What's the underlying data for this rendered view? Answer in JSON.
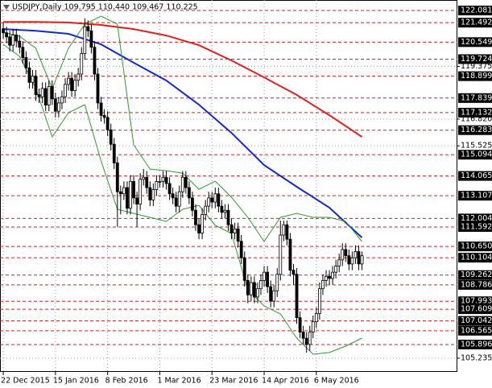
{
  "chart_data": {
    "type": "candlestick",
    "title": "USDJPY,Daily  109.795 110.440 109.467 110.225",
    "categories": [
      "22 Dec 2015",
      null,
      null,
      null,
      null,
      null,
      null,
      null,
      null,
      null,
      null,
      null,
      null,
      null,
      null,
      null,
      "15 Jan 2016",
      null,
      null,
      null,
      null,
      null,
      null,
      null,
      null,
      null,
      null,
      null,
      null,
      null,
      null,
      null,
      "8 Feb 2016",
      null,
      null,
      null,
      null,
      null,
      null,
      null,
      null,
      null,
      null,
      null,
      null,
      null,
      null,
      null,
      "1 Mar 2016",
      null,
      null,
      null,
      null,
      null,
      null,
      null,
      null,
      null,
      null,
      null,
      null,
      null,
      null,
      null,
      "23 Mar 2016",
      null,
      null,
      null,
      null,
      null,
      null,
      null,
      null,
      null,
      null,
      null,
      null,
      null,
      null,
      null,
      "14 Apr 2016",
      null,
      null,
      null,
      null,
      null,
      null,
      null,
      null,
      null,
      null,
      null,
      null,
      null,
      null,
      null,
      "6 May 2016",
      null,
      null,
      null,
      null,
      null,
      null,
      null,
      null,
      null,
      null,
      null,
      null,
      null,
      null
    ],
    "open": [
      121.2,
      121.0,
      120.8,
      120.4,
      120.9,
      120.6,
      120.3,
      119.8,
      119.3,
      118.6,
      118.9,
      118.0,
      117.9,
      118.3,
      117.5,
      118.4,
      117.8,
      117.2,
      117.6,
      117.9,
      118.5,
      118.8,
      118.2,
      118.7,
      119.0,
      120.0,
      121.3,
      121.1,
      120.3,
      119.0,
      117.6,
      117.0,
      116.9,
      116.3,
      115.6,
      114.7,
      113.3,
      113.2,
      113.5,
      112.5,
      113.8,
      113.0,
      112.7,
      113.9,
      114.0,
      113.5,
      112.9,
      113.4,
      113.8,
      113.8,
      114.0,
      113.7,
      113.2,
      113.0,
      112.6,
      113.3,
      114.0,
      113.5,
      113.0,
      112.4,
      111.7,
      111.3,
      112.2,
      112.6,
      113.0,
      112.8,
      113.2,
      112.6,
      112.3,
      112.4,
      111.7,
      111.3,
      111.5,
      110.9,
      110.1,
      109.0,
      108.3,
      108.9,
      108.2,
      108.6,
      109.0,
      109.4,
      108.7,
      108.0,
      108.5,
      109.3,
      111.2,
      111.7,
      111.0,
      109.5,
      109.3,
      107.2,
      106.5,
      106.2,
      105.9,
      106.5,
      107.0,
      107.4,
      108.6,
      109.0,
      109.2,
      109.1,
      109.4,
      109.7,
      110.0,
      110.5,
      110.2,
      109.8,
      110.1,
      110.4,
      109.8
    ],
    "high": [
      121.5,
      121.3,
      121.1,
      121.2,
      121.2,
      120.9,
      120.6,
      120.1,
      119.6,
      119.2,
      119.2,
      118.3,
      118.6,
      118.6,
      118.7,
      118.7,
      118.1,
      117.9,
      118.2,
      118.8,
      119.1,
      119.1,
      119.0,
      119.3,
      120.3,
      121.7,
      121.6,
      121.4,
      120.6,
      119.3,
      117.9,
      117.3,
      117.2,
      116.6,
      115.9,
      115.0,
      113.6,
      113.8,
      113.8,
      114.1,
      114.1,
      113.3,
      114.2,
      114.4,
      114.3,
      113.8,
      113.7,
      114.1,
      114.1,
      114.3,
      114.3,
      114.0,
      113.5,
      113.3,
      113.6,
      114.3,
      114.3,
      113.8,
      113.3,
      112.7,
      112.0,
      112.5,
      112.9,
      113.3,
      113.3,
      113.5,
      113.5,
      112.9,
      112.7,
      112.7,
      112.0,
      111.8,
      111.8,
      111.2,
      110.4,
      109.3,
      109.2,
      109.2,
      108.9,
      109.3,
      109.7,
      109.7,
      109.0,
      108.8,
      109.6,
      111.9,
      111.9,
      111.9,
      111.3,
      109.8,
      109.6,
      107.5,
      106.8,
      106.5,
      106.8,
      107.3,
      107.7,
      108.9,
      109.3,
      109.5,
      109.5,
      109.7,
      110.0,
      110.3,
      110.8,
      110.8,
      110.5,
      110.4,
      110.7,
      110.7,
      110.4
    ],
    "low": [
      120.7,
      120.5,
      120.1,
      120.1,
      120.3,
      120.0,
      119.5,
      119.0,
      118.3,
      118.3,
      117.7,
      117.6,
      117.6,
      117.2,
      117.2,
      117.5,
      116.9,
      116.9,
      117.3,
      117.6,
      118.2,
      117.9,
      117.9,
      118.4,
      118.7,
      119.7,
      120.8,
      120.0,
      118.7,
      117.3,
      116.7,
      116.6,
      116.0,
      115.3,
      114.4,
      111.6,
      112.2,
      112.9,
      112.2,
      112.2,
      112.7,
      111.6,
      112.4,
      113.6,
      113.2,
      112.6,
      112.6,
      113.1,
      113.5,
      113.5,
      113.4,
      112.9,
      112.7,
      112.3,
      112.3,
      113.0,
      113.2,
      112.7,
      112.1,
      111.4,
      111.0,
      111.0,
      111.9,
      112.3,
      112.5,
      112.5,
      112.3,
      112.0,
      112.0,
      111.4,
      111.0,
      111.0,
      110.6,
      109.8,
      108.7,
      107.9,
      108.0,
      107.9,
      107.9,
      108.3,
      108.7,
      108.4,
      107.7,
      107.7,
      108.2,
      109.0,
      110.9,
      110.7,
      109.2,
      108.8,
      106.9,
      106.2,
      105.9,
      105.5,
      105.6,
      106.2,
      106.7,
      107.1,
      108.3,
      108.7,
      108.8,
      108.8,
      109.1,
      109.4,
      109.7,
      109.9,
      109.5,
      109.5,
      109.8,
      109.5,
      109.5
    ],
    "close": [
      121.0,
      120.8,
      120.4,
      120.9,
      120.6,
      120.3,
      119.8,
      119.3,
      118.6,
      118.9,
      118.0,
      117.9,
      118.3,
      117.5,
      118.4,
      117.8,
      117.2,
      117.6,
      117.9,
      118.5,
      118.8,
      118.2,
      118.7,
      119.0,
      120.0,
      121.3,
      121.1,
      120.3,
      119.0,
      117.6,
      117.0,
      116.9,
      116.3,
      115.6,
      114.7,
      113.3,
      113.2,
      113.5,
      112.5,
      113.8,
      113.0,
      112.7,
      113.9,
      114.0,
      113.5,
      112.9,
      113.4,
      113.8,
      113.8,
      114.0,
      113.7,
      113.2,
      113.0,
      112.6,
      113.3,
      114.0,
      113.5,
      113.0,
      112.4,
      111.7,
      111.3,
      112.2,
      112.6,
      113.0,
      112.8,
      113.2,
      112.6,
      112.3,
      112.4,
      111.7,
      111.3,
      111.5,
      110.9,
      110.1,
      109.0,
      108.3,
      108.9,
      108.2,
      108.6,
      109.0,
      109.4,
      108.7,
      108.0,
      108.5,
      109.3,
      111.2,
      111.7,
      111.0,
      109.5,
      109.3,
      107.2,
      106.5,
      106.2,
      105.9,
      106.5,
      107.0,
      107.4,
      108.6,
      109.0,
      109.2,
      109.1,
      109.4,
      109.7,
      110.0,
      110.5,
      110.2,
      109.8,
      110.1,
      110.4,
      109.8,
      110.2
    ],
    "overlays": [
      {
        "color": "#e0201c",
        "x": [
          0,
          10,
          20,
          30,
          40,
          50,
          60,
          70,
          80,
          90,
          100,
          110
        ],
        "values": [
          121.53,
          121.53,
          121.5,
          121.38,
          121.18,
          120.87,
          120.4,
          119.66,
          118.84,
          117.99,
          117.01,
          115.96
        ]
      },
      {
        "color": "#1428d0",
        "x": [
          0,
          10,
          20,
          30,
          40,
          50,
          60,
          70,
          80,
          90,
          100,
          110
        ],
        "values": [
          121.18,
          121.1,
          120.95,
          120.44,
          119.55,
          118.69,
          117.52,
          116.15,
          114.59,
          113.54,
          112.53,
          111.08
        ]
      },
      {
        "color": "#2e9a2e",
        "x": [
          0,
          5,
          10,
          15,
          20,
          25,
          30,
          35,
          40,
          45,
          50,
          55,
          60,
          65,
          70,
          75,
          80,
          85,
          90,
          95,
          100,
          105,
          110
        ],
        "values": [
          121.03,
          120.83,
          120.25,
          118.3,
          120.25,
          121.42,
          121.81,
          121.42,
          115.57,
          114.4,
          114.32,
          114.2,
          113.42,
          113.81,
          113.03,
          112.06,
          110.89,
          112.06,
          112.25,
          112.06,
          112.06,
          111.86,
          110.89
        ]
      },
      {
        "color": "#2e9a2e",
        "x": [
          0,
          5,
          10,
          15,
          20,
          25,
          30,
          35,
          40,
          45,
          50,
          55,
          60,
          65,
          70,
          75,
          80,
          85,
          90,
          95,
          100,
          105,
          110
        ],
        "values": [
          120.44,
          119.86,
          118.3,
          115.96,
          117.13,
          117.52,
          114.79,
          112.45,
          112.25,
          112.06,
          111.86,
          112.45,
          112.64,
          111.67,
          111.28,
          108.55,
          107.77,
          107.38,
          106.21,
          105.43,
          105.51,
          105.82,
          106.21
        ]
      }
    ],
    "levels": [
      122.081,
      121.492,
      120.549,
      119.724,
      118.899,
      117.839,
      117.132,
      116.283,
      115.094,
      114.065,
      113.107,
      112.004,
      111.592,
      {
        "value": 110.65,
        "label": "110.650"
      },
      110.104,
      109.262,
      108.786,
      107.993,
      107.609,
      107.042,
      106.565,
      105.896
    ],
    "level_color": "#d02020",
    "yticks": [
      119.375,
      {
        "value": 116.82,
        "label": "116.820"
      },
      115.525,
      105.235
    ],
    "xlim": [
      -1,
      139.25
    ],
    "ylim": [
      104.57,
      122.59
    ],
    "up_color": "#ffffff",
    "down_color": "#000000",
    "grid": true
  }
}
